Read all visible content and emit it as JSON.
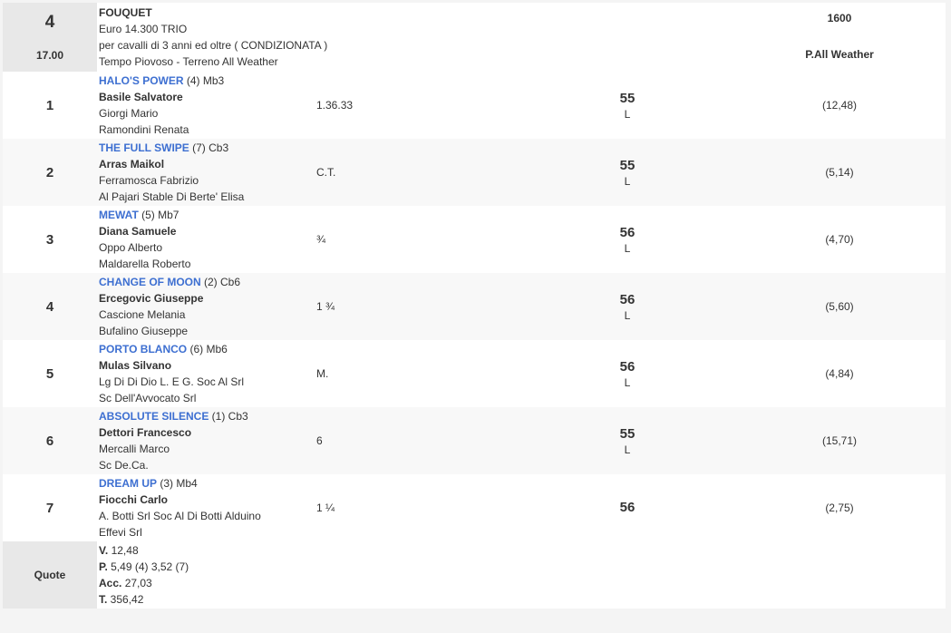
{
  "race": {
    "number": "4",
    "time": "17.00",
    "name": "FOUQUET",
    "prize": "Euro 14.300 TRIO",
    "conditions": "per cavalli di 3 anni ed oltre ( CONDIZIONATA )",
    "weather": "Tempo Piovoso - Terreno All Weather",
    "distance": "1600",
    "track": "P.All Weather"
  },
  "colors": {
    "link": "#3d6fd1",
    "header_bg": "#e8e8e8"
  },
  "runners": [
    {
      "pos": "1",
      "horse": "HALO'S POWER",
      "extra": " (4) Mb3",
      "jockey": "Basile Salvatore",
      "trainer": "Giorgi Mario",
      "owner": "Ramondini Renata",
      "time": "1.36.33",
      "weight": "55",
      "tag": "L",
      "odds": "(12,48)"
    },
    {
      "pos": "2",
      "horse": "THE FULL SWIPE",
      "extra": " (7) Cb3",
      "jockey": "Arras Maikol",
      "trainer": "Ferramosca Fabrizio",
      "owner": "Al Pajari Stable Di Berte' Elisa",
      "time": "C.T.",
      "weight": "55",
      "tag": "L",
      "odds": "(5,14)"
    },
    {
      "pos": "3",
      "horse": "MEWAT",
      "extra": " (5) Mb7",
      "jockey": "Diana Samuele",
      "trainer": "Oppo Alberto",
      "owner": "Maldarella Roberto",
      "time": "¾",
      "weight": "56",
      "tag": "L",
      "odds": "(4,70)"
    },
    {
      "pos": "4",
      "horse": "CHANGE OF MOON",
      "extra": " (2) Cb6",
      "jockey": "Ercegovic Giuseppe",
      "trainer": "Cascione Melania",
      "owner": "Bufalino Giuseppe",
      "time": "1 ¾",
      "weight": "56",
      "tag": "L",
      "odds": "(5,60)"
    },
    {
      "pos": "5",
      "horse": "PORTO BLANCO",
      "extra": " (6) Mb6",
      "jockey": "Mulas Silvano",
      "trainer": "Lg Di Di Dio L. E G. Soc Al Srl",
      "owner": "Sc Dell'Avvocato Srl",
      "time": "M.",
      "weight": "56",
      "tag": "L",
      "odds": "(4,84)"
    },
    {
      "pos": "6",
      "horse": "ABSOLUTE SILENCE",
      "extra": " (1) Cb3",
      "jockey": "Dettori Francesco",
      "trainer": "Mercalli Marco",
      "owner": "Sc De.Ca.",
      "time": "6",
      "weight": "55",
      "tag": "L",
      "odds": "(15,71)"
    },
    {
      "pos": "7",
      "horse": "DREAM UP",
      "extra": " (3) Mb4",
      "jockey": "Fiocchi Carlo",
      "trainer": "A. Botti Srl Soc Al Di Botti Alduino",
      "owner": "Effevi Srl",
      "time": "1 ¼",
      "weight": "56",
      "tag": "",
      "odds": "(2,75)"
    }
  ],
  "quote": {
    "label": "Quote",
    "lines": [
      {
        "k": "V.",
        "v": " 12,48"
      },
      {
        "k": "P.",
        "v": " 5,49 (4)  3,52 (7)"
      },
      {
        "k": "Acc.",
        "v": " 27,03"
      },
      {
        "k": "T.",
        "v": " 356,42"
      }
    ]
  }
}
